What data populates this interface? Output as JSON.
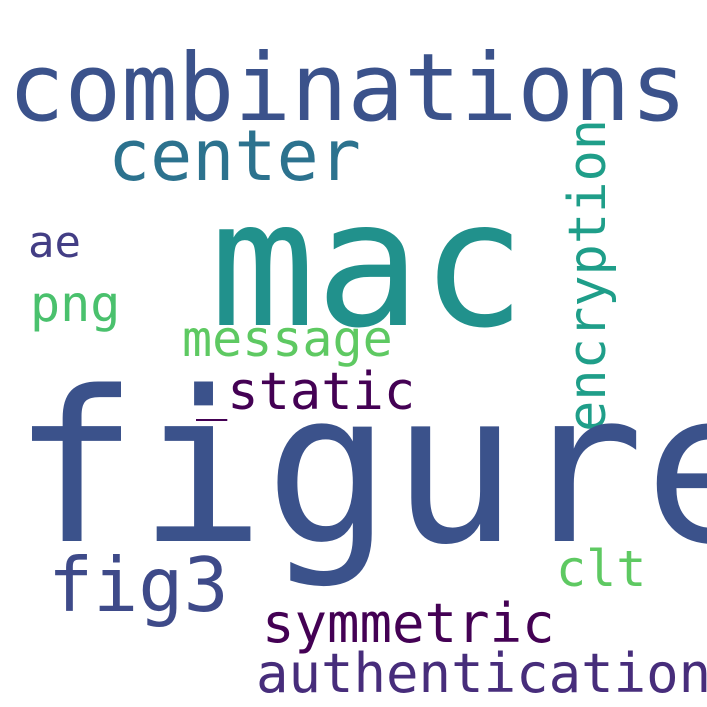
{
  "words": {
    "combinations": {
      "text": "combinations",
      "color": "#3b528b"
    },
    "center": {
      "text": "center",
      "color": "#2c728e"
    },
    "mac": {
      "text": "mac",
      "color": "#21918c"
    },
    "ae": {
      "text": "ae",
      "color": "#433e85"
    },
    "png": {
      "text": "png",
      "color": "#4ac16d"
    },
    "message": {
      "text": "message",
      "color": "#5ec962"
    },
    "encryption": {
      "text": "encryption",
      "color": "#1f9e89"
    },
    "static": {
      "text": "_static",
      "color": "#440154"
    },
    "figure": {
      "text": "figure",
      "color": "#3b528b"
    },
    "fig3": {
      "text": "fig3",
      "color": "#3e4a89"
    },
    "clt": {
      "text": "clt",
      "color": "#5ec962"
    },
    "symmetric": {
      "text": "symmetric",
      "color": "#440154"
    },
    "authentication": {
      "text": "authentication",
      "color": "#472d7b"
    }
  }
}
